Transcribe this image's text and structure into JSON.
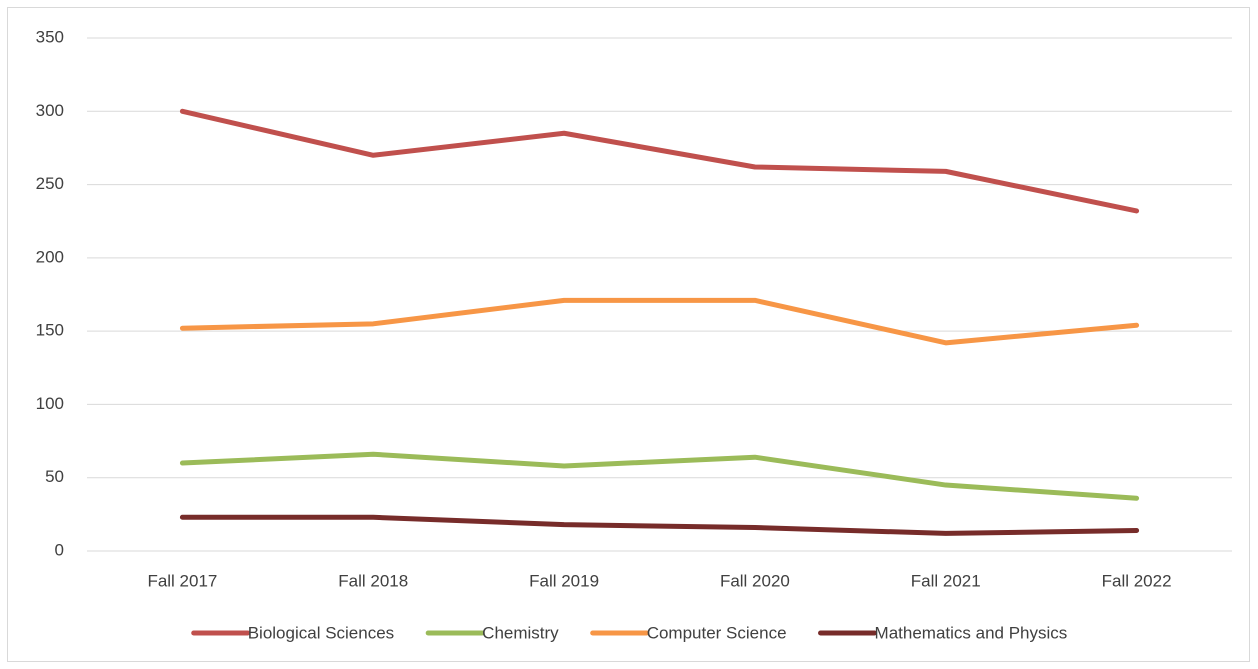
{
  "chart_data": {
    "type": "line",
    "categories": [
      "Fall 2017",
      "Fall 2018",
      "Fall 2019",
      "Fall 2020",
      "Fall 2021",
      "Fall 2022"
    ],
    "series": [
      {
        "name": "Biological Sciences",
        "color": "#c0504d",
        "values": [
          300,
          270,
          285,
          262,
          259,
          232
        ]
      },
      {
        "name": "Chemistry",
        "color": "#9bbb59",
        "values": [
          60,
          66,
          58,
          64,
          45,
          36
        ]
      },
      {
        "name": "Computer Science",
        "color": "#f79646",
        "values": [
          152,
          155,
          171,
          171,
          142,
          154
        ]
      },
      {
        "name": "Mathematics and Physics",
        "color": "#772c2a",
        "values": [
          23,
          23,
          18,
          16,
          12,
          14
        ]
      }
    ],
    "ylim": [
      0,
      350
    ],
    "yticks": [
      0,
      50,
      100,
      150,
      200,
      250,
      300,
      350
    ],
    "grid": true,
    "legend": "bottom"
  }
}
